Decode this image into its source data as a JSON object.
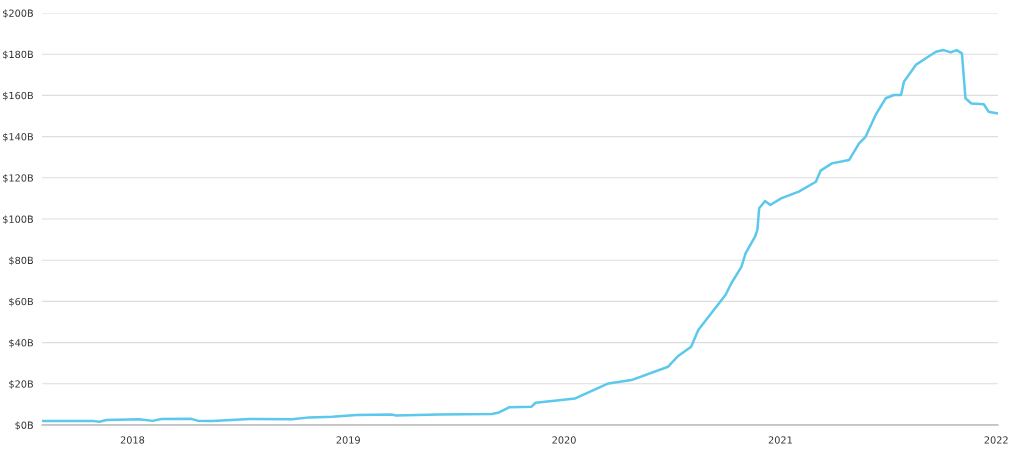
{
  "chart_data": {
    "type": "line",
    "x": [
      "2017-08-02",
      "2017-10-25",
      "2017-11-06",
      "2017-11-18",
      "2018-01-13",
      "2018-02-04",
      "2018-02-19",
      "2018-04-11",
      "2018-04-21",
      "2018-05-16",
      "2018-07-18",
      "2018-09-28",
      "2018-10-27",
      "2018-12-05",
      "2019-01-15",
      "2019-03-15",
      "2019-03-23",
      "2019-06-03",
      "2019-09-01",
      "2019-09-13",
      "2019-09-30",
      "2019-11-07",
      "2019-11-14",
      "2020-01-20",
      "2020-03-16",
      "2020-04-24",
      "2020-06-25",
      "2020-07-12",
      "2020-08-03",
      "2020-08-15",
      "2020-09-06",
      "2020-09-30",
      "2020-10-10",
      "2020-10-27",
      "2020-11-03",
      "2020-11-19",
      "2020-11-23",
      "2020-11-26",
      "2020-12-06",
      "2020-12-15",
      "2021-01-02",
      "2021-02-01",
      "2021-03-02",
      "2021-03-10",
      "2021-03-29",
      "2021-04-27",
      "2021-05-14",
      "2021-05-25",
      "2021-06-11",
      "2021-06-28",
      "2021-07-12",
      "2021-07-24",
      "2021-07-29",
      "2021-08-18",
      "2021-09-04",
      "2021-09-21",
      "2021-10-04",
      "2021-10-16",
      "2021-10-26",
      "2021-11-04",
      "2021-11-10",
      "2021-11-20",
      "2021-12-11",
      "2021-12-19",
      "2022-01-02"
    ],
    "series": [
      {
        "color": "#5bc8ec",
        "values": [
          2.0,
          2.0,
          1.6,
          2.4,
          2.8,
          2.0,
          2.9,
          3.0,
          2.1,
          2.0,
          2.9,
          2.8,
          3.7,
          4.0,
          4.9,
          5.1,
          4.6,
          5.1,
          5.3,
          6.1,
          8.6,
          8.9,
          10.8,
          12.9,
          20.2,
          21.8,
          28.3,
          33.5,
          38.0,
          46.1,
          54.2,
          63.1,
          68.8,
          76.8,
          83.3,
          91.4,
          94.7,
          105.2,
          108.7,
          106.8,
          110.0,
          113.3,
          118.1,
          123.5,
          127.0,
          128.6,
          136.7,
          139.9,
          150.5,
          158.6,
          160.2,
          160.2,
          166.7,
          174.8,
          178.0,
          181.2,
          182.0,
          180.9,
          182.0,
          180.4,
          158.6,
          156.1,
          155.7,
          152.1,
          151.3
        ]
      }
    ],
    "xlim": [
      "2017-08-01",
      "2022-01-04"
    ],
    "xticks": [
      "2018",
      "2019",
      "2020",
      "2021",
      "2022"
    ],
    "ylim": [
      0,
      200
    ],
    "yticks": [
      {
        "value": 0,
        "label": "$0B"
      },
      {
        "value": 20,
        "label": "$20B"
      },
      {
        "value": 40,
        "label": "$40B"
      },
      {
        "value": 60,
        "label": "$60B"
      },
      {
        "value": 80,
        "label": "$80B"
      },
      {
        "value": 100,
        "label": "$100B"
      },
      {
        "value": 120,
        "label": "$120B"
      },
      {
        "value": 140,
        "label": "$140B"
      },
      {
        "value": 160,
        "label": "$160B"
      },
      {
        "value": 180,
        "label": "$180B"
      },
      {
        "value": 200,
        "label": "$200B"
      }
    ],
    "grid": "y",
    "marker": "none",
    "line_style": "solid"
  }
}
